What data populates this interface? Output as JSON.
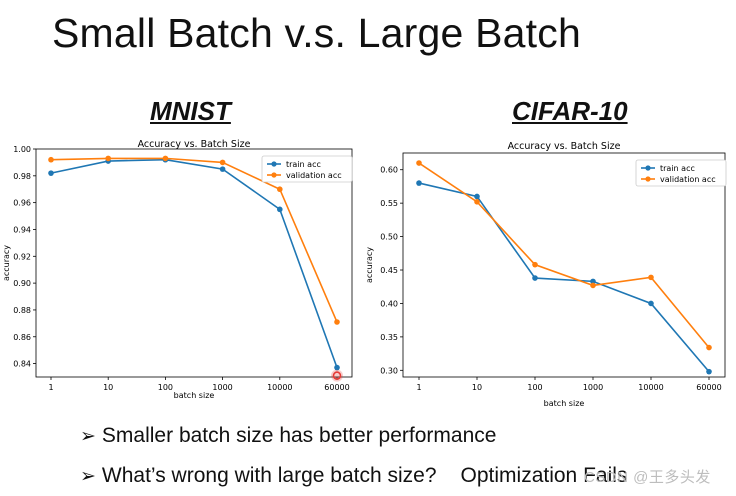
{
  "slide": {
    "title": "Small Batch v.s. Large Batch",
    "bullets": [
      {
        "arrow": "➢",
        "text": "Smaller batch size has better performance",
        "extra": ""
      },
      {
        "arrow": "➢",
        "text": "What’s wrong with large batch size?",
        "extra": "Optimization Fails"
      }
    ],
    "watermark": "CSDN @王多头发"
  },
  "colors": {
    "train": "#1f77b4",
    "validation": "#ff7f0e",
    "axis": "#000000",
    "highlight": "#e53935"
  },
  "chart_data": [
    {
      "type": "line",
      "subtitle": "MNIST",
      "title": "Accuracy vs. Batch Size",
      "xlabel": "batch size",
      "ylabel": "accuracy",
      "categories": [
        "1",
        "10",
        "100",
        "1000",
        "10000",
        "60000"
      ],
      "ylim": [
        0.83,
        1.0
      ],
      "yticks": [
        0.84,
        0.86,
        0.88,
        0.9,
        0.92,
        0.94,
        0.96,
        0.98,
        1.0
      ],
      "ytick_labels": [
        "0.84",
        "0.86",
        "0.88",
        "0.90",
        "0.92",
        "0.94",
        "0.96",
        "0.98",
        "1.00"
      ],
      "legend": "top-right",
      "highlight_point": {
        "series": 0,
        "index": 5
      },
      "series": [
        {
          "name": "train acc",
          "values": [
            0.982,
            0.991,
            0.992,
            0.985,
            0.955,
            0.837
          ]
        },
        {
          "name": "validation acc",
          "values": [
            0.992,
            0.993,
            0.993,
            0.99,
            0.97,
            0.871
          ]
        }
      ]
    },
    {
      "type": "line",
      "subtitle": "CIFAR-10",
      "title": "Accuracy vs. Batch Size",
      "xlabel": "batch size",
      "ylabel": "accuracy",
      "categories": [
        "1",
        "10",
        "100",
        "1000",
        "10000",
        "60000"
      ],
      "ylim": [
        0.29,
        0.625
      ],
      "yticks": [
        0.3,
        0.35,
        0.4,
        0.45,
        0.5,
        0.55,
        0.6
      ],
      "ytick_labels": [
        "0.30",
        "0.35",
        "0.40",
        "0.45",
        "0.50",
        "0.55",
        "0.60"
      ],
      "legend": "top-right",
      "series": [
        {
          "name": "train acc",
          "values": [
            0.58,
            0.56,
            0.438,
            0.433,
            0.4,
            0.298
          ]
        },
        {
          "name": "validation acc",
          "values": [
            0.61,
            0.552,
            0.458,
            0.427,
            0.439,
            0.334
          ]
        }
      ]
    }
  ]
}
